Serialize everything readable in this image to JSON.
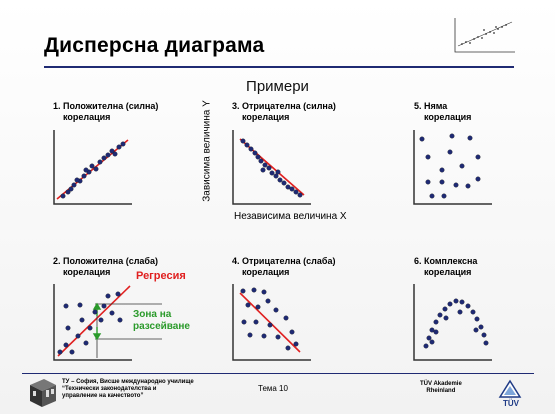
{
  "title": "Дисперсна диаграма",
  "subtitle": "Примери",
  "axis_labels": {
    "y": "Зависима величина Y",
    "x": "Независима величина Х"
  },
  "panels": [
    {
      "id": "p1",
      "line1": "1. Положителна (силна)",
      "line2": "корелация"
    },
    {
      "id": "p3",
      "line1": "3. Отрицателна (силна)",
      "line2": "корелация"
    },
    {
      "id": "p5",
      "line1": "5. Няма",
      "line2": "корелация"
    },
    {
      "id": "p2",
      "line1": "2. Положителна (слаба)",
      "line2": "корелация"
    },
    {
      "id": "p4",
      "line1": "4. Отрицателна (слаба)",
      "line2": "корелация"
    },
    {
      "id": "p6",
      "line1": "6. Комплексна",
      "line2": "корелация"
    }
  ],
  "annotations": {
    "regression": "Регресия",
    "zone_line1": "Зона на",
    "zone_line2": "разсейване"
  },
  "footer": {
    "left_line1": "ТУ – София, Висше международно училище",
    "left_line2": "“Технически законодателства и",
    "left_line3": "управление на качеството”",
    "center": "Тема 10",
    "right_line1": "TÜV Akademie",
    "right_line2": "Rheinland",
    "logo_text": "TÜV"
  },
  "colors": {
    "title_rule": "#1f2a73",
    "dots": "#1f2a73",
    "regression": "#e02020",
    "zone": "#2a9a2a"
  }
}
